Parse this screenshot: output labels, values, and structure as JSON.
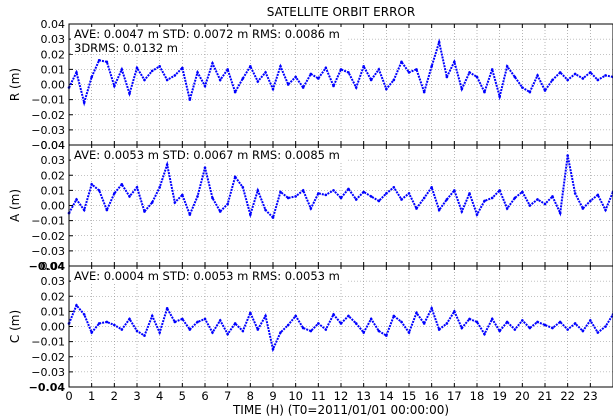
{
  "figure": {
    "title": "SATELLITE ORBIT ERROR",
    "xlabel": "TIME (H) (T0=2011/01/01 00:00:00)"
  },
  "chart_data": [
    {
      "type": "scatter",
      "panel": "R",
      "ylabel": "R (m)",
      "ylim": [
        -0.04,
        0.04
      ],
      "yticks": [
        "0.04",
        "0.03",
        "0.02",
        "0.01",
        "0.00",
        "−0.01",
        "−0.02",
        "−0.03",
        "−0.04"
      ],
      "annotations": [
        "AVE: 0.0047 m STD: 0.0072 m RMS: 0.0086 m",
        "3DRMS: 0.0132 m"
      ],
      "series": [
        {
          "color": "#0000ff",
          "x": [
            0.0,
            0.33,
            0.67,
            1.0,
            1.33,
            1.67,
            2.0,
            2.33,
            2.67,
            3.0,
            3.33,
            3.67,
            4.0,
            4.33,
            4.67,
            5.0,
            5.33,
            5.67,
            6.0,
            6.33,
            6.67,
            7.0,
            7.33,
            7.67,
            8.0,
            8.33,
            8.67,
            9.0,
            9.33,
            9.67,
            10.0,
            10.33,
            10.67,
            11.0,
            11.33,
            11.67,
            12.0,
            12.33,
            12.67,
            13.0,
            13.33,
            13.67,
            14.0,
            14.33,
            14.67,
            15.0,
            15.33,
            15.67,
            16.0,
            16.33,
            16.67,
            17.0,
            17.33,
            17.67,
            18.0,
            18.33,
            18.67,
            19.0,
            19.33,
            19.67,
            20.0,
            20.33,
            20.67,
            21.0,
            21.33,
            21.67,
            22.0,
            22.33,
            22.67,
            23.0,
            23.33,
            23.67,
            24.0
          ],
          "y": [
            -0.002,
            0.008,
            -0.012,
            0.005,
            0.016,
            0.015,
            -0.001,
            0.01,
            -0.006,
            0.011,
            0.003,
            0.009,
            0.012,
            0.003,
            0.006,
            0.011,
            -0.01,
            0.008,
            -0.001,
            0.014,
            0.003,
            0.01,
            -0.005,
            0.004,
            0.012,
            0.002,
            0.008,
            -0.003,
            0.012,
            0.0,
            0.005,
            -0.002,
            0.007,
            0.004,
            0.011,
            -0.001,
            0.01,
            0.008,
            -0.002,
            0.012,
            0.003,
            0.01,
            -0.003,
            0.003,
            0.015,
            0.008,
            0.01,
            -0.005,
            0.012,
            0.028,
            0.005,
            0.015,
            -0.003,
            0.008,
            0.005,
            -0.005,
            0.01,
            -0.008,
            0.012,
            0.005,
            -0.002,
            -0.005,
            0.006,
            -0.004,
            0.003,
            0.008,
            0.003,
            0.007,
            0.004,
            0.008,
            0.003,
            0.006,
            0.005
          ]
        }
      ]
    },
    {
      "type": "scatter",
      "panel": "A",
      "ylabel": "A (m)",
      "ylim": [
        -0.04,
        0.04
      ],
      "yticks": [
        "0.04",
        "0.03",
        "0.02",
        "0.01",
        "0.00",
        "−0.01",
        "−0.02",
        "−0.03",
        "−0.04"
      ],
      "annotations": [
        "AVE: 0.0053 m STD: 0.0067 m RMS: 0.0085 m"
      ],
      "series": [
        {
          "color": "#0000ff",
          "x": [
            0.0,
            0.33,
            0.67,
            1.0,
            1.33,
            1.67,
            2.0,
            2.33,
            2.67,
            3.0,
            3.33,
            3.67,
            4.0,
            4.33,
            4.67,
            5.0,
            5.33,
            5.67,
            6.0,
            6.33,
            6.67,
            7.0,
            7.33,
            7.67,
            8.0,
            8.33,
            8.67,
            9.0,
            9.33,
            9.67,
            10.0,
            10.33,
            10.67,
            11.0,
            11.33,
            11.67,
            12.0,
            12.33,
            12.67,
            13.0,
            13.33,
            13.67,
            14.0,
            14.33,
            14.67,
            15.0,
            15.33,
            15.67,
            16.0,
            16.33,
            16.67,
            17.0,
            17.33,
            17.67,
            18.0,
            18.33,
            18.67,
            19.0,
            19.33,
            19.67,
            20.0,
            20.33,
            20.67,
            21.0,
            21.33,
            21.67,
            22.0,
            22.33,
            22.67,
            23.0,
            23.33,
            23.67,
            24.0
          ],
          "y": [
            -0.005,
            0.004,
            -0.003,
            0.014,
            0.01,
            -0.003,
            0.008,
            0.014,
            0.006,
            0.012,
            -0.004,
            0.002,
            0.012,
            0.027,
            0.002,
            0.007,
            -0.006,
            0.006,
            0.025,
            0.005,
            -0.004,
            0.001,
            0.019,
            0.012,
            -0.006,
            0.01,
            -0.003,
            -0.008,
            0.009,
            0.005,
            0.006,
            0.01,
            -0.002,
            0.008,
            0.007,
            0.01,
            0.005,
            0.011,
            0.004,
            0.009,
            0.006,
            0.003,
            0.008,
            0.012,
            0.004,
            0.008,
            -0.002,
            0.005,
            0.012,
            -0.003,
            0.004,
            0.01,
            -0.004,
            0.008,
            -0.006,
            0.003,
            0.005,
            0.01,
            -0.002,
            0.005,
            0.009,
            0.0,
            0.004,
            0.001,
            0.006,
            -0.005,
            0.033,
            0.008,
            -0.002,
            0.003,
            0.007,
            -0.003,
            0.009
          ]
        }
      ]
    },
    {
      "type": "scatter",
      "panel": "C",
      "ylabel": "C (m)",
      "ylim": [
        -0.04,
        0.04
      ],
      "yticks": [
        "0.04",
        "0.03",
        "0.02",
        "0.01",
        "0.00",
        "−0.01",
        "−0.02",
        "−0.03",
        "−0.04"
      ],
      "annotations": [
        "AVE: 0.0004 m STD: 0.0053 m RMS: 0.0053 m"
      ],
      "series": [
        {
          "color": "#0000ff",
          "x": [
            0.0,
            0.33,
            0.67,
            1.0,
            1.33,
            1.67,
            2.0,
            2.33,
            2.67,
            3.0,
            3.33,
            3.67,
            4.0,
            4.33,
            4.67,
            5.0,
            5.33,
            5.67,
            6.0,
            6.33,
            6.67,
            7.0,
            7.33,
            7.67,
            8.0,
            8.33,
            8.67,
            9.0,
            9.33,
            9.67,
            10.0,
            10.33,
            10.67,
            11.0,
            11.33,
            11.67,
            12.0,
            12.33,
            12.67,
            13.0,
            13.33,
            13.67,
            14.0,
            14.33,
            14.67,
            15.0,
            15.33,
            15.67,
            16.0,
            16.33,
            16.67,
            17.0,
            17.33,
            17.67,
            18.0,
            18.33,
            18.67,
            19.0,
            19.33,
            19.67,
            20.0,
            20.33,
            20.67,
            21.0,
            21.33,
            21.67,
            22.0,
            22.33,
            22.67,
            23.0,
            23.33,
            23.67,
            24.0
          ],
          "y": [
            0.002,
            0.014,
            0.008,
            -0.004,
            0.002,
            0.003,
            0.001,
            -0.002,
            0.005,
            -0.003,
            -0.006,
            0.007,
            -0.004,
            0.012,
            0.003,
            0.005,
            -0.002,
            0.003,
            0.005,
            -0.004,
            0.004,
            -0.005,
            0.002,
            -0.003,
            0.009,
            -0.002,
            0.007,
            -0.015,
            -0.004,
            0.001,
            0.007,
            -0.001,
            -0.003,
            0.002,
            -0.002,
            0.008,
            0.002,
            0.007,
            0.002,
            -0.004,
            0.005,
            -0.003,
            -0.006,
            0.007,
            0.003,
            -0.004,
            0.009,
            0.002,
            0.012,
            -0.002,
            0.002,
            0.01,
            -0.001,
            0.005,
            0.003,
            -0.005,
            0.005,
            -0.003,
            0.003,
            -0.002,
            0.004,
            -0.001,
            0.003,
            0.001,
            -0.001,
            0.003,
            -0.002,
            0.002,
            -0.003,
            0.004,
            -0.004,
            0.0,
            0.008
          ]
        }
      ]
    }
  ],
  "xaxis": {
    "xlim": [
      0,
      24
    ],
    "ticks": [
      "0",
      "1",
      "2",
      "3",
      "4",
      "5",
      "6",
      "7",
      "8",
      "9",
      "10",
      "11",
      "12",
      "13",
      "14",
      "15",
      "16",
      "17",
      "18",
      "19",
      "20",
      "21",
      "22",
      "23"
    ]
  }
}
